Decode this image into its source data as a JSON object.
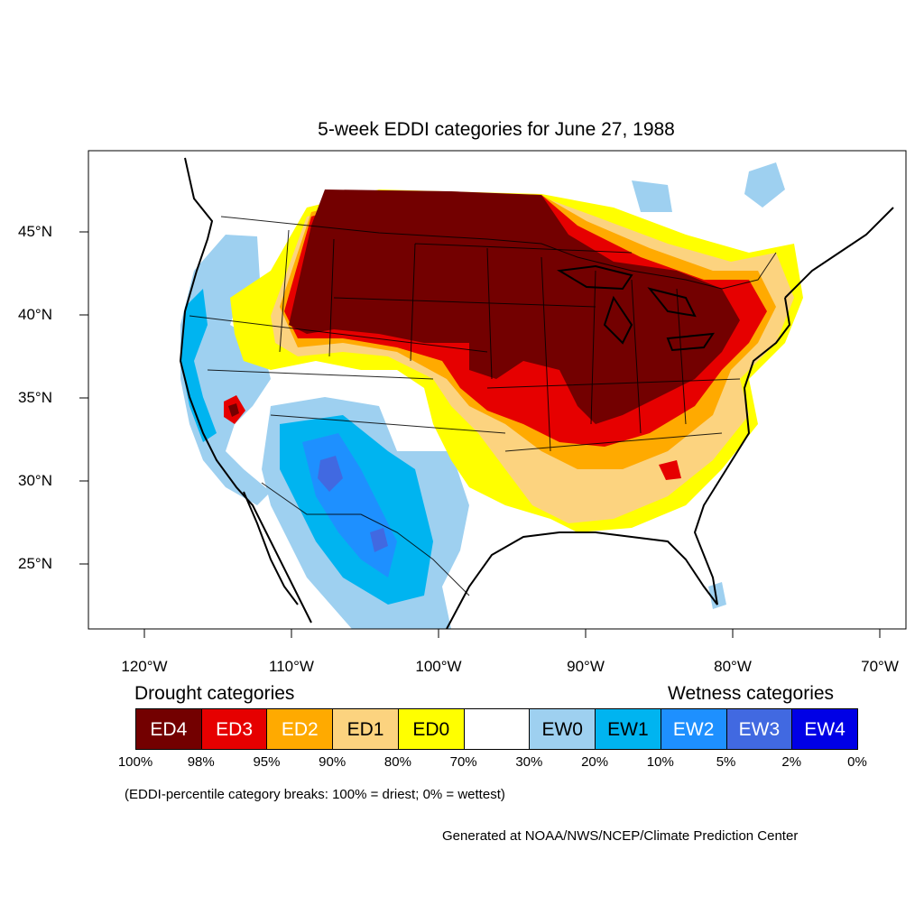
{
  "title": "5-week EDDI categories for June 27, 1988",
  "lat_labels": [
    "45°N",
    "40°N",
    "35°N",
    "30°N",
    "25°N"
  ],
  "lon_labels": [
    "120°W",
    "110°W",
    "100°W",
    "90°W",
    "80°W",
    "70°W"
  ],
  "legend": {
    "drought_heading": "Drought categories",
    "wetness_heading": "Wetness categories",
    "categories": [
      {
        "label": "ED4",
        "color": "#730000",
        "text_color": "#ffffff"
      },
      {
        "label": "ED3",
        "color": "#e60000",
        "text_color": "#ffffff"
      },
      {
        "label": "ED2",
        "color": "#ffaa00",
        "text_color": "#ffffff"
      },
      {
        "label": "ED1",
        "color": "#fcd37f",
        "text_color": "#000000"
      },
      {
        "label": "ED0",
        "color": "#ffff00",
        "text_color": "#000000"
      },
      {
        "label": "",
        "color": "#ffffff",
        "text_color": "#000000"
      },
      {
        "label": "EW0",
        "color": "#9ed0f0",
        "text_color": "#000000"
      },
      {
        "label": "EW1",
        "color": "#00b4f0",
        "text_color": "#000000"
      },
      {
        "label": "EW2",
        "color": "#1e90ff",
        "text_color": "#ffffff"
      },
      {
        "label": "EW3",
        "color": "#4169e1",
        "text_color": "#ffffff"
      },
      {
        "label": "EW4",
        "color": "#0000e6",
        "text_color": "#ffffff"
      }
    ],
    "breaks": [
      "100%",
      "98%",
      "95%",
      "90%",
      "80%",
      "70%",
      "30%",
      "20%",
      "10%",
      "5%",
      "2%",
      "0%"
    ]
  },
  "note": "(EDDI-percentile category breaks: 100% = driest; 0% = wettest)",
  "credit": "Generated at NOAA/NWS/NCEP/Climate Prediction Center"
}
